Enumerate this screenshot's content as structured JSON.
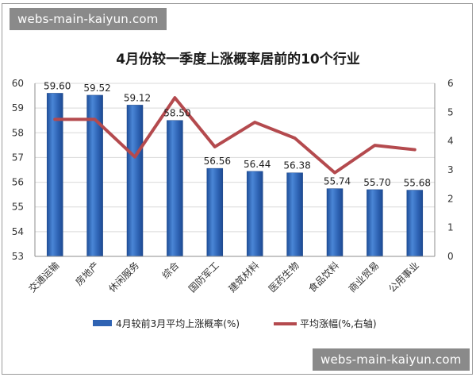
{
  "watermark_top": "webs-main-kaiyun.com",
  "watermark_bottom": "webs-main-kaiyun.com",
  "chart_data": {
    "type": "bar",
    "title": "4月份较一季度上涨概率居前的10个行业",
    "categories": [
      "交通运输",
      "房地产",
      "休闲服务",
      "综合",
      "国防军工",
      "建筑材料",
      "医药生物",
      "食品饮料",
      "商业贸易",
      "公用事业"
    ],
    "series": [
      {
        "name": "4月较前3月平均上涨概率(%)",
        "type": "bar",
        "axis": "left",
        "values": [
          59.6,
          59.52,
          59.12,
          58.5,
          56.56,
          56.44,
          56.38,
          55.74,
          55.7,
          55.68
        ],
        "labels": [
          "59.60",
          "59.52",
          "59.12",
          "58.50",
          "56.56",
          "56.44",
          "56.38",
          "55.74",
          "55.70",
          "55.68"
        ],
        "color": "#2f63b3"
      },
      {
        "name": "平均涨幅(%,右轴)",
        "type": "line",
        "axis": "right",
        "values": [
          4.75,
          4.75,
          3.45,
          5.5,
          3.8,
          4.65,
          4.1,
          2.9,
          3.85,
          3.7
        ],
        "color": "#b44a4e"
      }
    ],
    "y_left": {
      "ylim": [
        53,
        60
      ],
      "ticks": [
        "53",
        "54",
        "55",
        "56",
        "57",
        "58",
        "59",
        "60"
      ]
    },
    "y_right": {
      "ylim": [
        0,
        6
      ],
      "ticks": [
        "0",
        "1",
        "2",
        "3",
        "4",
        "5",
        "6"
      ]
    },
    "grid": true,
    "legend_position": "bottom"
  }
}
